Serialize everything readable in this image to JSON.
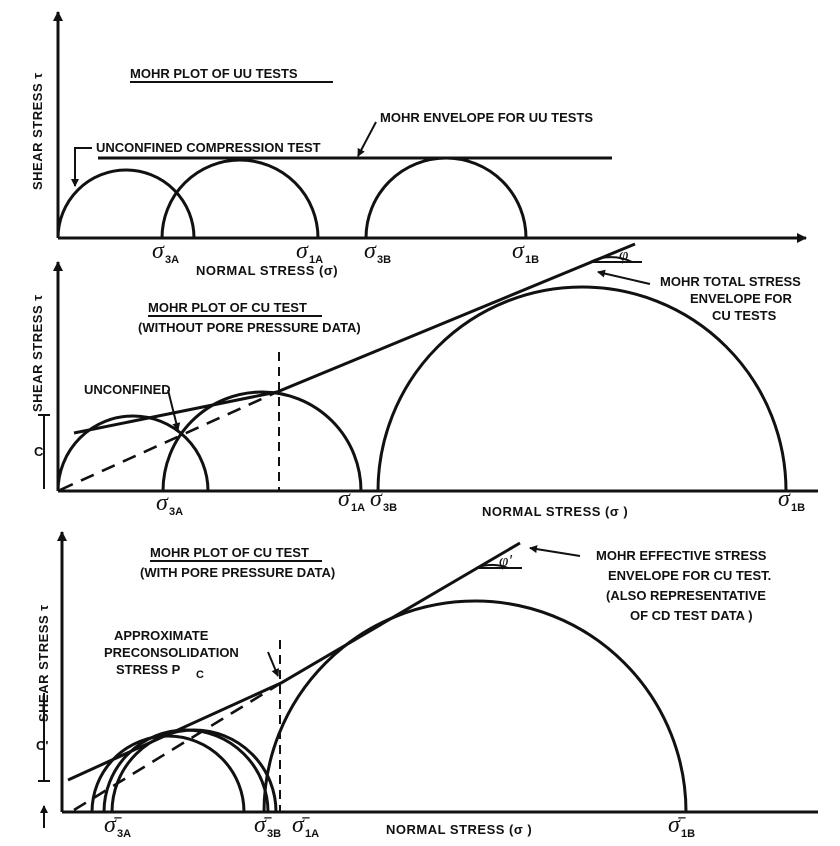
{
  "panel1": {
    "title": "MOHR PLOT OF UU TESTS",
    "ylabel": "SHEAR STRESS τ",
    "xlabel": "NORMAL    STRESS (σ)",
    "unconfined_label": "UNCONFINED COMPRESSION TEST",
    "envelope_label": "MOHR ENVELOPE FOR UU TESTS",
    "ticks": [
      {
        "sym": "σ",
        "sub": "3A"
      },
      {
        "sym": "σ",
        "sub": "1A"
      },
      {
        "sym": "σ",
        "sub": "3B"
      },
      {
        "sym": "σ",
        "sub": "1B"
      }
    ]
  },
  "panel2": {
    "title": "MOHR PLOT OF CU TEST",
    "subtitle": "(WITHOUT PORE PRESSURE DATA)",
    "ylabel": "SHEAR STRESS τ",
    "xlabel": "NORMAL        STRESS (σ )",
    "unconfined_label": "UNCONFINED",
    "c_label": "C",
    "phi_label": "φ",
    "envelope_label": [
      "MOHR TOTAL STRESS",
      "ENVELOPE FOR",
      "CU TESTS"
    ],
    "ticks": [
      {
        "sym": "σ",
        "sub": "3A"
      },
      {
        "sym": "σ",
        "sub": "1A"
      },
      {
        "sym": "σ",
        "sub": "3B"
      },
      {
        "sym": "σ",
        "sub": "1B"
      }
    ]
  },
  "panel3": {
    "title": "MOHR PLOT OF CU TEST",
    "subtitle": "(WITH PORE PRESSURE DATA)",
    "ylabel": "SHEAR STRESS τ",
    "xlabel": "NORMAL        STRESS (σ )",
    "c_label": "C'",
    "phi_label": "φ'",
    "precon_label": [
      "APPROXIMATE",
      "PRECONSOLIDATION",
      "STRESS  P"
    ],
    "precon_sub": "C",
    "envelope_label": [
      "MOHR EFFECTIVE STRESS",
      "ENVELOPE FOR CU TEST.",
      "(ALSO REPRESENTATIVE",
      "OF CD TEST DATA )"
    ],
    "ticks": [
      {
        "sym": "σ̄",
        "sub": "3A"
      },
      {
        "sym": "σ̄",
        "sub": "3B"
      },
      {
        "sym": "σ̄",
        "sub": "1A"
      },
      {
        "sym": "σ̄",
        "sub": "1B"
      }
    ]
  }
}
